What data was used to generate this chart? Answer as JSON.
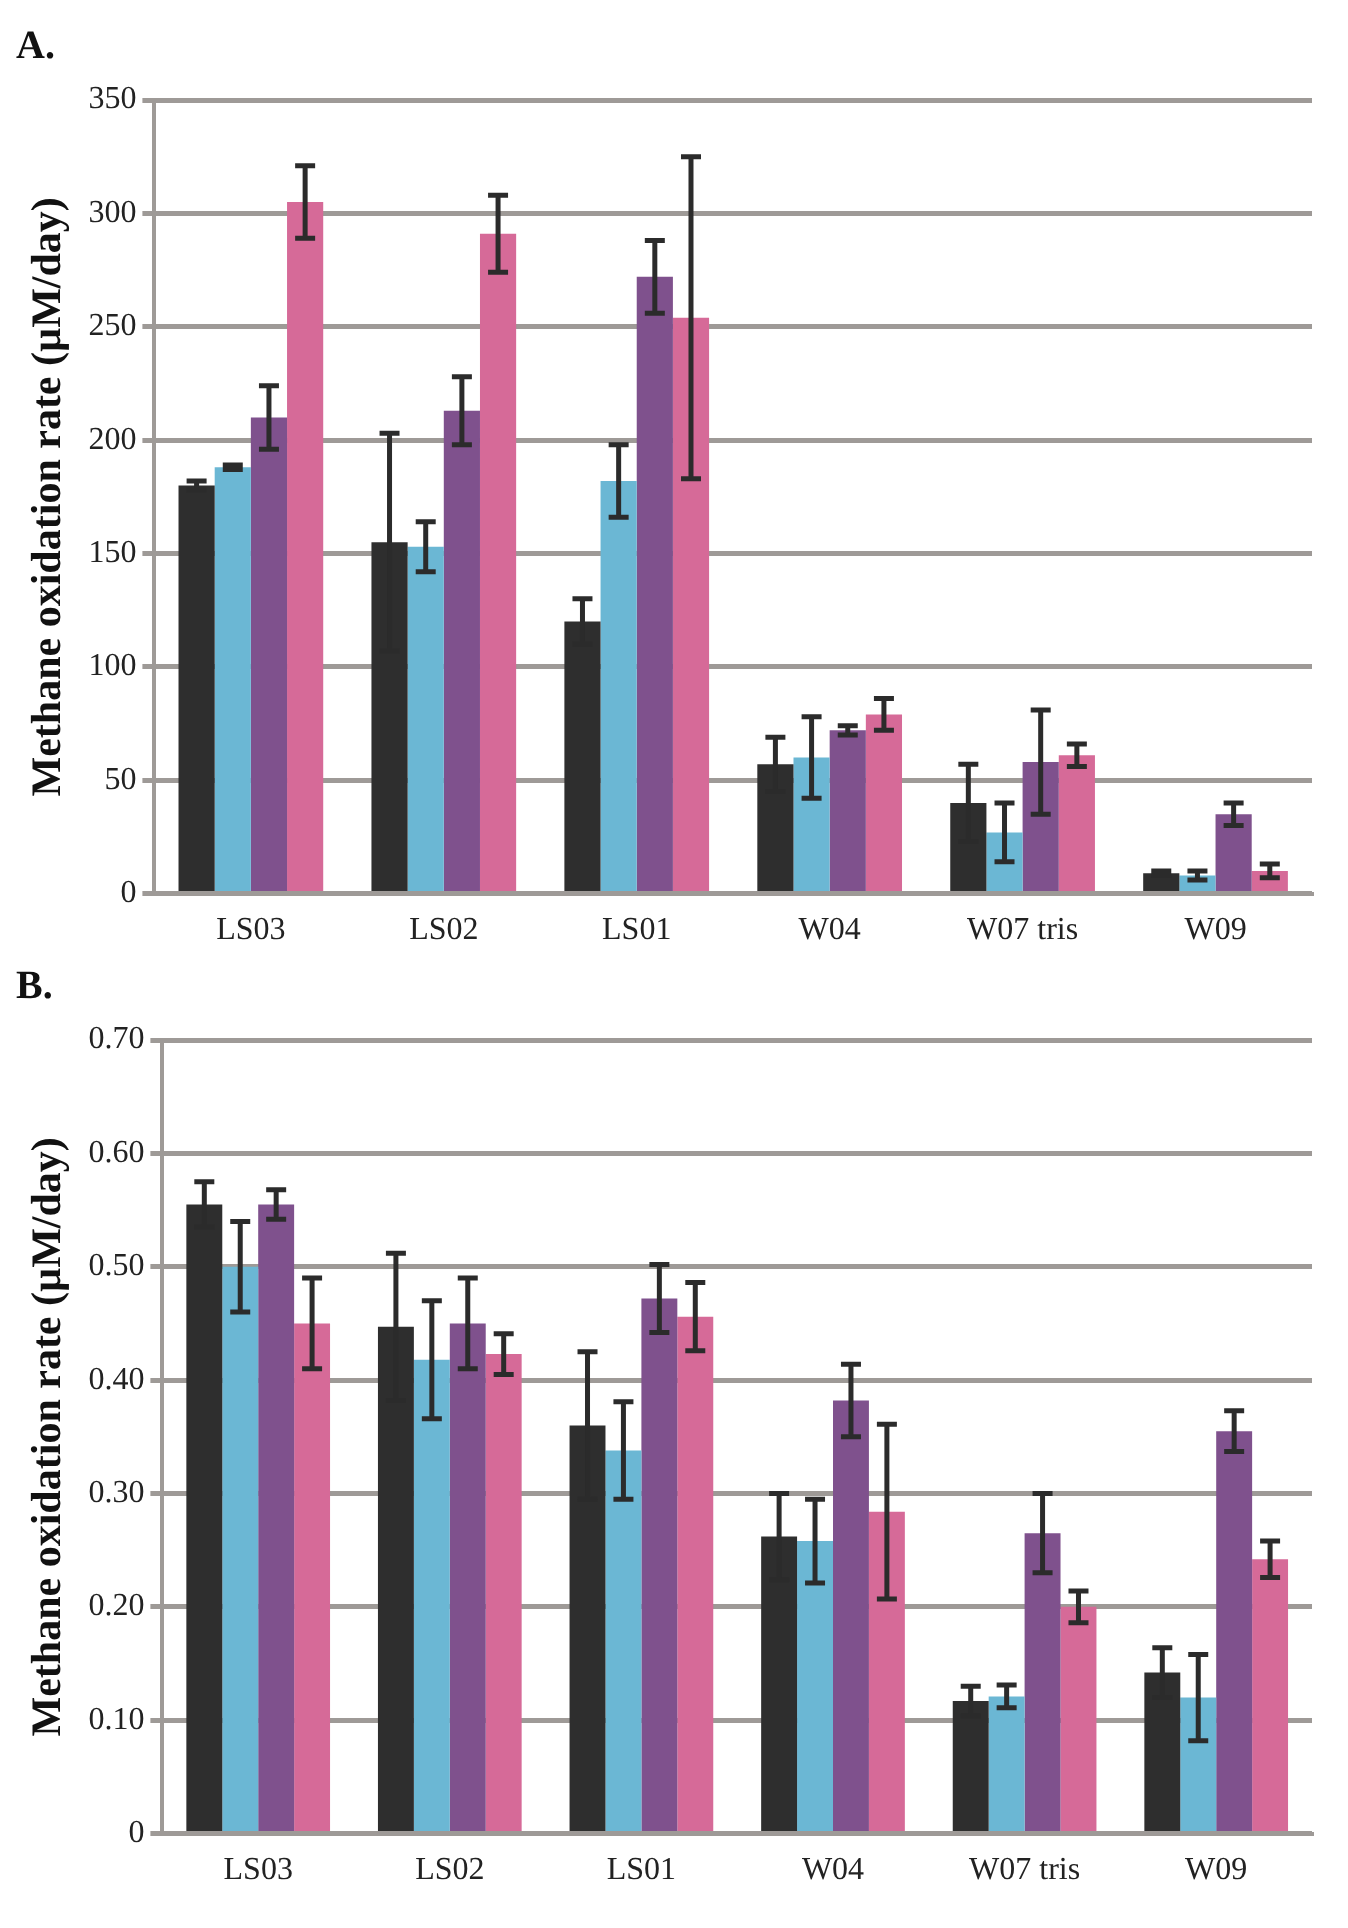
{
  "chart_data": [
    {
      "type": "bar",
      "title": "A.",
      "ylabel": "Methane oxidation rate (µM/day)",
      "categories": [
        "LS03",
        "LS02",
        "LS01",
        "W04",
        "W07 tris",
        "W09"
      ],
      "series": [
        {
          "color": "#2e2e2e",
          "values": [
            180,
            155,
            120,
            57,
            40,
            9
          ],
          "errors": [
            2,
            48,
            10,
            12,
            17,
            1
          ]
        },
        {
          "color": "#6bb7d4",
          "values": [
            188,
            153,
            182,
            60,
            27,
            8
          ],
          "errors": [
            1,
            11,
            16,
            18,
            13,
            2
          ]
        },
        {
          "color": "#7f518d",
          "values": [
            210,
            213,
            272,
            72,
            58,
            35
          ],
          "errors": [
            14,
            15,
            16,
            2,
            23,
            5
          ]
        },
        {
          "color": "#d66a98",
          "values": [
            305,
            291,
            254,
            79,
            61,
            10
          ],
          "errors": [
            16,
            17,
            71,
            7,
            5,
            3
          ]
        }
      ],
      "ylim": [
        0,
        350
      ],
      "yticks": [
        0,
        50,
        100,
        150,
        200,
        250,
        300,
        350
      ],
      "grid": "y"
    },
    {
      "type": "bar",
      "title": "B.",
      "ylabel": "Methane oxidation rate (µM/day)",
      "categories": [
        "LS03",
        "LS02",
        "LS01",
        "W04",
        "W07 tris",
        "W09"
      ],
      "series": [
        {
          "color": "#2e2e2e",
          "values": [
            0.555,
            0.447,
            0.36,
            0.262,
            0.117,
            0.142
          ],
          "errors": [
            0.02,
            0.065,
            0.065,
            0.038,
            0.013,
            0.022
          ]
        },
        {
          "color": "#6bb7d4",
          "values": [
            0.5,
            0.418,
            0.338,
            0.258,
            0.121,
            0.12
          ],
          "errors": [
            0.04,
            0.052,
            0.043,
            0.037,
            0.01,
            0.038
          ]
        },
        {
          "color": "#7f518d",
          "values": [
            0.555,
            0.45,
            0.472,
            0.382,
            0.265,
            0.355
          ],
          "errors": [
            0.013,
            0.04,
            0.03,
            0.032,
            0.035,
            0.018
          ]
        },
        {
          "color": "#d66a98",
          "values": [
            0.45,
            0.423,
            0.456,
            0.284,
            0.2,
            0.242
          ],
          "errors": [
            0.04,
            0.018,
            0.03,
            0.077,
            0.014,
            0.016
          ]
        }
      ],
      "ylim": [
        0,
        0.7
      ],
      "yticks": [
        0,
        {
          "value": 0.1,
          "label": "0.10"
        },
        {
          "value": 0.2,
          "label": "0.20"
        },
        {
          "value": 0.3,
          "label": "0.30"
        },
        {
          "value": 0.4,
          "label": "0.40"
        },
        {
          "value": 0.5,
          "label": "0.50"
        },
        {
          "value": 0.6,
          "label": "0.60"
        },
        {
          "value": 0.7,
          "label": "0.70"
        }
      ],
      "grid": "y"
    }
  ]
}
